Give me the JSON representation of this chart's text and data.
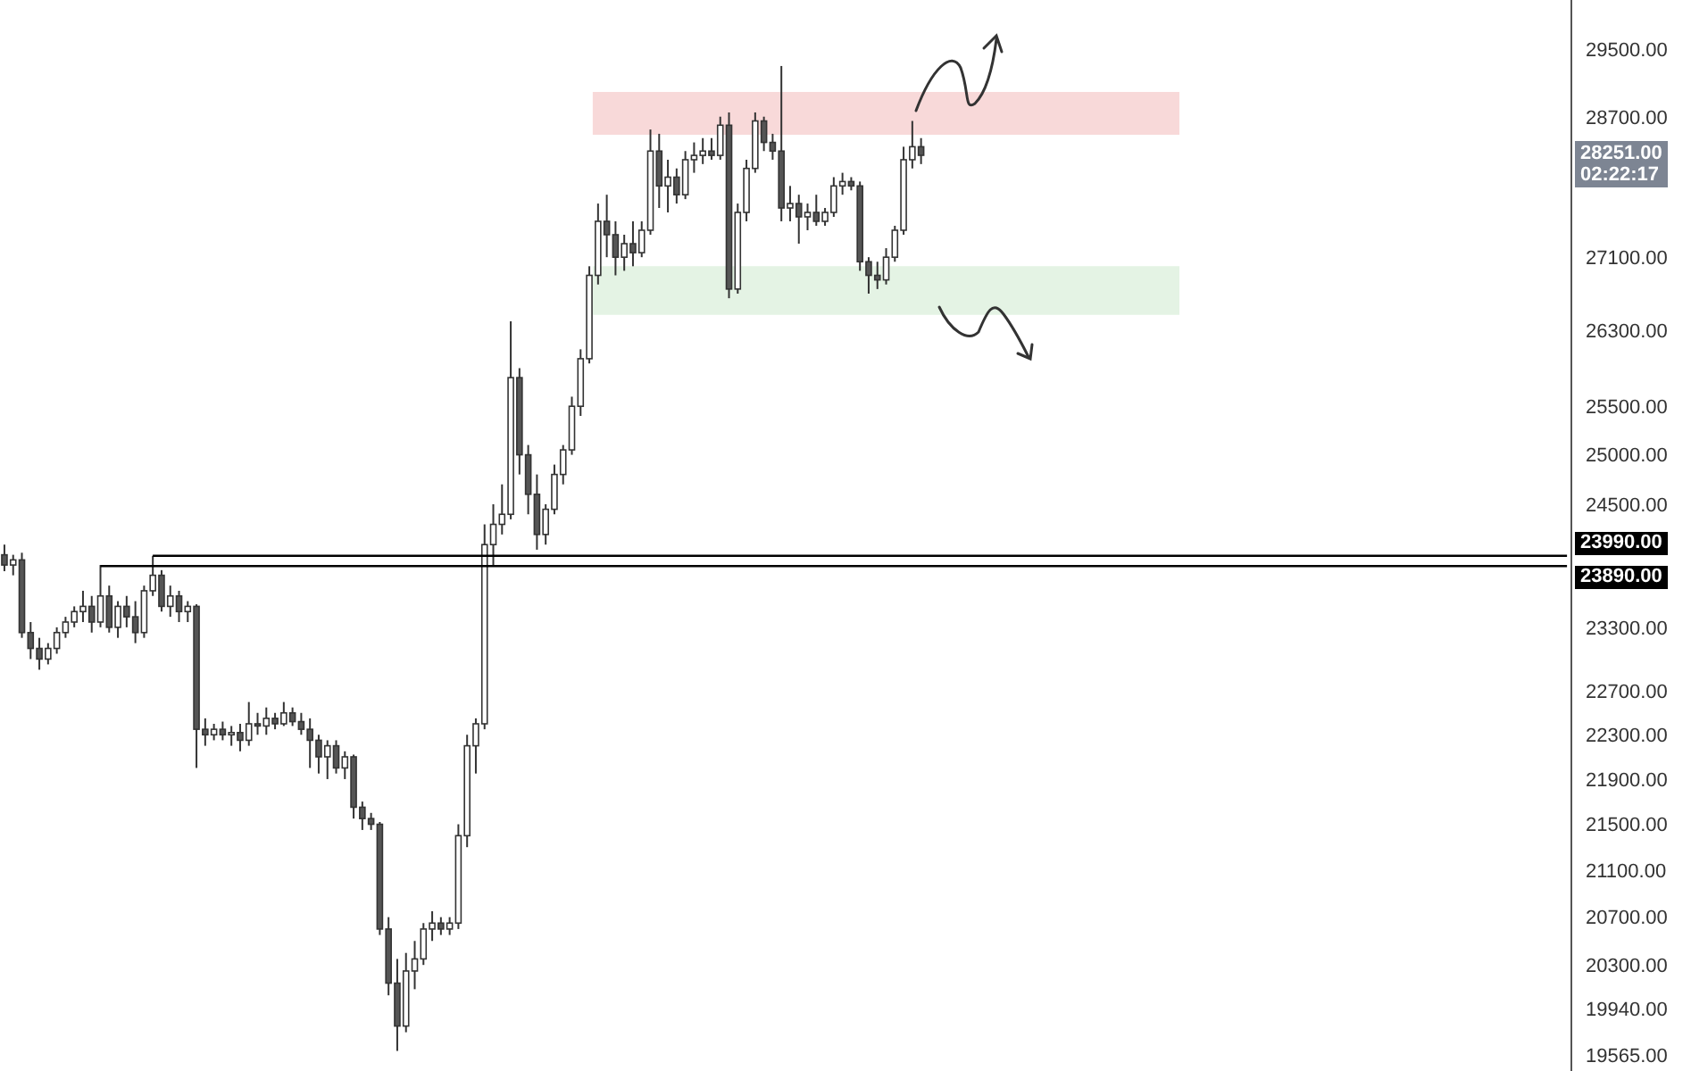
{
  "chart_data": {
    "type": "candlestick",
    "log": true,
    "categories": [
      null,
      null,
      null,
      null,
      null,
      null,
      null,
      null,
      null,
      null,
      null,
      null,
      null,
      null,
      null,
      null,
      null,
      null,
      null,
      null,
      null,
      null,
      null,
      null,
      null,
      null,
      null,
      null,
      null,
      null,
      null,
      null,
      null,
      null,
      null,
      null,
      null,
      null,
      null,
      null,
      null,
      null,
      null,
      null,
      null,
      null,
      null,
      null,
      null,
      null,
      null,
      null,
      null,
      null,
      null,
      null,
      null,
      null,
      null,
      null,
      null,
      null,
      null,
      null,
      null,
      null,
      null,
      null,
      null,
      null,
      null,
      null,
      null,
      null,
      null,
      null,
      null,
      null,
      null,
      null,
      null,
      null,
      null,
      null,
      null,
      null,
      null,
      null,
      null,
      null,
      null,
      null,
      null,
      null,
      null,
      null,
      null,
      null,
      null,
      null,
      null,
      null,
      null,
      null,
      null,
      null,
      null,
      null,
      null,
      null,
      null,
      null,
      null,
      null,
      null,
      null,
      null,
      null,
      null,
      null,
      null,
      null,
      null,
      null,
      null,
      null,
      null,
      null,
      null,
      null,
      null,
      null,
      null,
      null,
      null,
      null,
      null,
      null,
      null,
      null,
      null,
      null,
      null,
      null,
      null,
      null,
      null,
      null,
      null,
      null,
      null,
      null,
      null,
      null,
      null,
      null,
      null,
      null,
      null,
      null,
      null,
      null,
      null,
      null,
      null,
      null,
      null,
      null,
      null,
      null,
      null,
      null,
      null,
      null,
      null,
      null,
      null,
      null,
      null,
      null
    ],
    "ohlc": [
      [
        24000,
        24100,
        23840,
        23900
      ],
      [
        23900,
        24000,
        23800,
        23950
      ],
      [
        23950,
        24020,
        23200,
        23250
      ],
      [
        23250,
        23350,
        23000,
        23100
      ],
      [
        23100,
        23200,
        22900,
        23000
      ],
      [
        23000,
        23150,
        22950,
        23100
      ],
      [
        23100,
        23300,
        23050,
        23250
      ],
      [
        23250,
        23400,
        23200,
        23350
      ],
      [
        23350,
        23500,
        23300,
        23450
      ],
      [
        23450,
        23650,
        23350,
        23500
      ],
      [
        23500,
        23600,
        23250,
        23350
      ],
      [
        23350,
        23900,
        23300,
        23600
      ],
      [
        23600,
        23700,
        23250,
        23300
      ],
      [
        23300,
        23550,
        23200,
        23500
      ],
      [
        23500,
        23600,
        23300,
        23400
      ],
      [
        23400,
        23550,
        23150,
        23250
      ],
      [
        23250,
        23700,
        23200,
        23650
      ],
      [
        23650,
        23990,
        23600,
        23800
      ],
      [
        23800,
        23850,
        23450,
        23500
      ],
      [
        23500,
        23700,
        23400,
        23600
      ],
      [
        23600,
        23650,
        23350,
        23450
      ],
      [
        23450,
        23550,
        23350,
        23500
      ],
      [
        23500,
        23520,
        22000,
        22350
      ],
      [
        22350,
        22450,
        22200,
        22300
      ],
      [
        22300,
        22400,
        22250,
        22350
      ],
      [
        22350,
        22420,
        22250,
        22300
      ],
      [
        22300,
        22380,
        22200,
        22320
      ],
      [
        22320,
        22400,
        22150,
        22250
      ],
      [
        22250,
        22600,
        22200,
        22400
      ],
      [
        22400,
        22500,
        22300,
        22380
      ],
      [
        22380,
        22550,
        22300,
        22450
      ],
      [
        22450,
        22500,
        22350,
        22400
      ],
      [
        22400,
        22600,
        22380,
        22500
      ],
      [
        22500,
        22550,
        22380,
        22420
      ],
      [
        22420,
        22500,
        22300,
        22350
      ],
      [
        22350,
        22450,
        22000,
        22250
      ],
      [
        22250,
        22300,
        21950,
        22100
      ],
      [
        22100,
        22250,
        21900,
        22200
      ],
      [
        22200,
        22250,
        21950,
        22000
      ],
      [
        22000,
        22150,
        21900,
        22100
      ],
      [
        22100,
        22120,
        21550,
        21650
      ],
      [
        21650,
        21700,
        21450,
        21550
      ],
      [
        21550,
        21600,
        21450,
        21500
      ],
      [
        21500,
        21520,
        20550,
        20600
      ],
      [
        20600,
        20700,
        20050,
        20150
      ],
      [
        20150,
        20350,
        19600,
        19800
      ],
      [
        19800,
        20400,
        19750,
        20250
      ],
      [
        20250,
        20500,
        20100,
        20350
      ],
      [
        20350,
        20650,
        20300,
        20600
      ],
      [
        20600,
        20750,
        20500,
        20650
      ],
      [
        20650,
        20700,
        20550,
        20600
      ],
      [
        20600,
        20700,
        20550,
        20650
      ],
      [
        20650,
        21500,
        20600,
        21400
      ],
      [
        21400,
        22300,
        21300,
        22200
      ],
      [
        22200,
        22450,
        21950,
        22400
      ],
      [
        22400,
        24300,
        22350,
        24100
      ],
      [
        24100,
        24500,
        23900,
        24300
      ],
      [
        24300,
        24700,
        24200,
        24400
      ],
      [
        24400,
        26400,
        24350,
        25800
      ],
      [
        25800,
        25900,
        24800,
        25000
      ],
      [
        25000,
        25100,
        24400,
        24600
      ],
      [
        24600,
        24800,
        24050,
        24200
      ],
      [
        24200,
        24500,
        24100,
        24450
      ],
      [
        24450,
        24900,
        24400,
        24800
      ],
      [
        24800,
        25100,
        24700,
        25050
      ],
      [
        25050,
        25600,
        25000,
        25500
      ],
      [
        25500,
        26100,
        25400,
        26000
      ],
      [
        26000,
        27000,
        25950,
        26900
      ],
      [
        26900,
        27700,
        26800,
        27500
      ],
      [
        27500,
        27800,
        27100,
        27350
      ],
      [
        27350,
        27500,
        26900,
        27100
      ],
      [
        27100,
        27350,
        26950,
        27250
      ],
      [
        27250,
        27500,
        27000,
        27150
      ],
      [
        27150,
        27500,
        27100,
        27400
      ],
      [
        27400,
        28550,
        27350,
        28300
      ],
      [
        28300,
        28500,
        27650,
        27900
      ],
      [
        27900,
        28200,
        27600,
        28000
      ],
      [
        28000,
        28100,
        27700,
        27800
      ],
      [
        27800,
        28300,
        27750,
        28200
      ],
      [
        28200,
        28400,
        28050,
        28250
      ],
      [
        28250,
        28450,
        28150,
        28300
      ],
      [
        28300,
        28450,
        28200,
        28250
      ],
      [
        28250,
        28700,
        28200,
        28600
      ],
      [
        28600,
        28750,
        26650,
        26750
      ],
      [
        26750,
        27700,
        26700,
        27600
      ],
      [
        27600,
        28200,
        27500,
        28100
      ],
      [
        28100,
        28750,
        28050,
        28650
      ],
      [
        28650,
        28700,
        28300,
        28400
      ],
      [
        28400,
        28500,
        28200,
        28300
      ],
      [
        28300,
        29300,
        27500,
        27650
      ],
      [
        27650,
        27900,
        27500,
        27700
      ],
      [
        27700,
        27800,
        27250,
        27550
      ],
      [
        27550,
        27700,
        27400,
        27600
      ],
      [
        27600,
        27800,
        27450,
        27500
      ],
      [
        27500,
        27650,
        27450,
        27600
      ],
      [
        27600,
        28000,
        27550,
        27900
      ],
      [
        27900,
        28050,
        27800,
        27950
      ],
      [
        27950,
        28000,
        27850,
        27900
      ],
      [
        27900,
        27950,
        26950,
        27050
      ],
      [
        27050,
        27100,
        26700,
        26900
      ],
      [
        26900,
        27050,
        26750,
        26850
      ],
      [
        26850,
        27200,
        26800,
        27100
      ],
      [
        27100,
        27450,
        27050,
        27400
      ],
      [
        27400,
        28350,
        27350,
        28200
      ],
      [
        28200,
        28650,
        28100,
        28350
      ],
      [
        28350,
        28450,
        28150,
        28251
      ],
      null,
      null,
      null,
      null,
      null,
      null,
      null,
      null,
      null,
      null,
      null,
      null,
      null,
      null,
      null,
      null,
      null,
      null,
      null,
      null,
      null,
      null,
      null,
      null,
      null,
      null,
      null,
      null,
      null,
      null,
      null,
      null,
      null,
      null,
      null,
      null,
      null,
      null,
      null,
      null,
      null,
      null,
      null,
      null,
      null,
      null,
      null,
      null,
      null,
      null,
      null,
      null,
      null,
      null,
      null,
      null,
      null,
      null,
      null,
      null,
      null,
      null,
      null,
      null,
      null,
      null,
      null,
      null,
      null,
      null,
      null,
      null,
      null,
      null
    ],
    "ylim": [
      19440,
      30100
    ],
    "yticks": [
      {
        "value": 29500,
        "label": "29500.00"
      },
      {
        "value": 28700,
        "label": "28700.00"
      },
      {
        "value": 27100,
        "label": "27100.00"
      },
      {
        "value": 26300,
        "label": "26300.00"
      },
      {
        "value": 25500,
        "label": "25500.00"
      },
      {
        "value": 25000,
        "label": "25000.00"
      },
      {
        "value": 24500,
        "label": "24500.00"
      },
      {
        "value": 23300,
        "label": "23300.00"
      },
      {
        "value": 22700,
        "label": "22700.00"
      },
      {
        "value": 22300,
        "label": "22300.00"
      },
      {
        "value": 21900,
        "label": "21900.00"
      },
      {
        "value": 21500,
        "label": "21500.00"
      },
      {
        "value": 21100,
        "label": "21100.00"
      },
      {
        "value": 20700,
        "label": "20700.00"
      },
      {
        "value": 20300,
        "label": "20300.00"
      },
      {
        "value": 19940,
        "label": "19940.00"
      },
      {
        "value": 19565,
        "label": "19565.00"
      }
    ],
    "tick_labels": "y",
    "ref_lines": [
      {
        "axis": "y",
        "value": 23990,
        "label": "23990.00",
        "color": "#000000"
      },
      {
        "axis": "y",
        "value": 23890,
        "label": "23890.00",
        "color": "#000000"
      }
    ],
    "bands": [
      {
        "axis": "y",
        "from": 28500,
        "to": 28980,
        "color": "#f8d9d9"
      },
      {
        "axis": "y",
        "from": 26480,
        "to": 26990,
        "color": "#e4f3e4"
      }
    ],
    "annotations": [
      "28251.00",
      "02:22:17"
    ]
  }
}
